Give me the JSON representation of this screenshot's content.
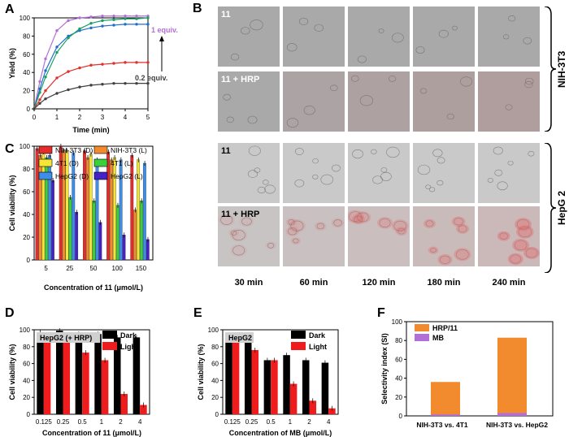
{
  "panel_letters": {
    "A": "A",
    "B": "B",
    "C": "C",
    "D": "D",
    "E": "E",
    "F": "F"
  },
  "panelB": {
    "rows": [
      {
        "label": "11",
        "group": "NIH-3T3"
      },
      {
        "label": "11 + HRP",
        "group": "NIH-3T3"
      },
      {
        "label": "11",
        "group": "HepG 2"
      },
      {
        "label": "11 + HRP",
        "group": "HepG 2"
      }
    ],
    "groups": [
      "NIH-3T3",
      "HepG 2"
    ],
    "times": [
      "30 min",
      "60 min",
      "120 min",
      "180 min",
      "240 min"
    ]
  },
  "chart_data": [
    {
      "panel": "A",
      "type": "line",
      "xlabel": "Time (min)",
      "ylabel": "Yield (%)",
      "xlim": [
        0,
        5
      ],
      "ylim": [
        0,
        100
      ],
      "xticks": [
        "0",
        "1",
        "2",
        "3",
        "4",
        "5"
      ],
      "yticks": [
        "0",
        "20",
        "40",
        "60",
        "80",
        "100"
      ],
      "annotations": [
        "1 equiv.",
        "0.2 equiv."
      ],
      "series": [
        {
          "color": "#b36fd8",
          "x": [
            0,
            0.25,
            0.5,
            1,
            1.5,
            2,
            2.5,
            3,
            3.5,
            4,
            4.5,
            5
          ],
          "y": [
            0,
            30,
            55,
            86,
            97,
            100,
            101,
            102,
            102,
            102,
            102,
            102
          ]
        },
        {
          "color": "#1f6fd0",
          "x": [
            0,
            0.25,
            0.5,
            1,
            1.5,
            2,
            2.5,
            3,
            3.5,
            4,
            4.5,
            5
          ],
          "y": [
            0,
            22,
            42,
            68,
            80,
            86,
            89,
            91,
            92,
            93,
            93,
            93
          ]
        },
        {
          "color": "#1aa060",
          "x": [
            0,
            0.25,
            0.5,
            1,
            1.5,
            2,
            2.5,
            3,
            3.5,
            4,
            4.5,
            5
          ],
          "y": [
            0,
            18,
            35,
            62,
            78,
            88,
            94,
            97,
            98,
            99,
            99,
            100
          ]
        },
        {
          "color": "#e0302a",
          "x": [
            0,
            0.25,
            0.5,
            1,
            1.5,
            2,
            2.5,
            3,
            3.5,
            4,
            4.5,
            5
          ],
          "y": [
            0,
            10,
            20,
            34,
            41,
            45,
            48,
            49,
            50,
            51,
            51,
            51
          ]
        },
        {
          "color": "#404040",
          "x": [
            0,
            0.25,
            0.5,
            1,
            1.5,
            2,
            2.5,
            3,
            3.5,
            4,
            4.5,
            5
          ],
          "y": [
            0,
            6,
            11,
            17,
            21,
            24,
            26,
            27,
            28,
            28,
            28,
            28
          ]
        }
      ]
    },
    {
      "panel": "C",
      "type": "bar",
      "xlabel": "Concentration of 11 (μmol/L)",
      "ylabel": "Cell viability (%)",
      "ylim": [
        0,
        100
      ],
      "yticks": [
        "0",
        "20",
        "40",
        "60",
        "80",
        "100"
      ],
      "categories": [
        "5",
        "25",
        "50",
        "100",
        "150"
      ],
      "series": [
        {
          "name": "NIH-3T3 (D)",
          "color": "#e52b2b",
          "values": [
            98,
            100,
            96,
            95,
            92
          ]
        },
        {
          "name": "NIH-3T3 (L)",
          "color": "#f28a2e",
          "values": [
            92,
            96,
            90,
            88,
            44
          ]
        },
        {
          "name": "4T1 (D)",
          "color": "#f5e536",
          "values": [
            95,
            96,
            93,
            90,
            88
          ]
        },
        {
          "name": "4T1 (L)",
          "color": "#3ccf3c",
          "values": [
            90,
            55,
            52,
            48,
            52
          ]
        },
        {
          "name": "HepG2 (D)",
          "color": "#3d8ee8",
          "values": [
            92,
            94,
            88,
            88,
            85
          ]
        },
        {
          "name": "HepG2 (L)",
          "color": "#4422c8",
          "values": [
            70,
            42,
            33,
            22,
            18
          ]
        }
      ]
    },
    {
      "panel": "D",
      "type": "bar",
      "tag": "HepG2 (+ HRP)",
      "xlabel": "Concentration of 11 (μmol/L)",
      "ylabel": "Cell viability (%)",
      "ylim": [
        0,
        100
      ],
      "yticks": [
        "0",
        "20",
        "40",
        "60",
        "80",
        "100"
      ],
      "categories": [
        "0.125",
        "0.25",
        "0.5",
        "1",
        "2",
        "4"
      ],
      "series": [
        {
          "name": "Dark",
          "color": "#000000",
          "values": [
            97,
            99,
            95,
            95,
            91,
            91
          ]
        },
        {
          "name": "Light",
          "color": "#ee1c1c",
          "values": [
            88,
            89,
            73,
            64,
            24,
            11
          ]
        }
      ]
    },
    {
      "panel": "E",
      "type": "bar",
      "tag": "HepG2",
      "xlabel": "Concentration of MB (μmol/L)",
      "ylabel": "Cell viability (%)",
      "ylim": [
        0,
        100
      ],
      "yticks": [
        "0",
        "20",
        "40",
        "60",
        "80",
        "100"
      ],
      "categories": [
        "0.125",
        "0.25",
        "0.5",
        "1",
        "2",
        "4"
      ],
      "series": [
        {
          "name": "Dark",
          "color": "#000000",
          "values": [
            86,
            85,
            64,
            70,
            64,
            61
          ]
        },
        {
          "name": "Light",
          "color": "#ee1c1c",
          "values": [
            91,
            76,
            64,
            36,
            16,
            7
          ]
        }
      ]
    },
    {
      "panel": "F",
      "type": "bar",
      "xlabel": "",
      "ylabel": "Selectivity index (SI)",
      "ylim": [
        0,
        100
      ],
      "yticks": [
        "0",
        "20",
        "40",
        "60",
        "80",
        "100"
      ],
      "categories": [
        "NIH-3T3 vs. 4T1",
        "NIH-3T3 vs. HepG2"
      ],
      "series": [
        {
          "name": "HRP/11",
          "color": "#f28a2e",
          "values": [
            36,
            83
          ]
        },
        {
          "name": "MB",
          "color": "#b36fd8",
          "values": [
            1.5,
            3
          ]
        }
      ]
    }
  ]
}
